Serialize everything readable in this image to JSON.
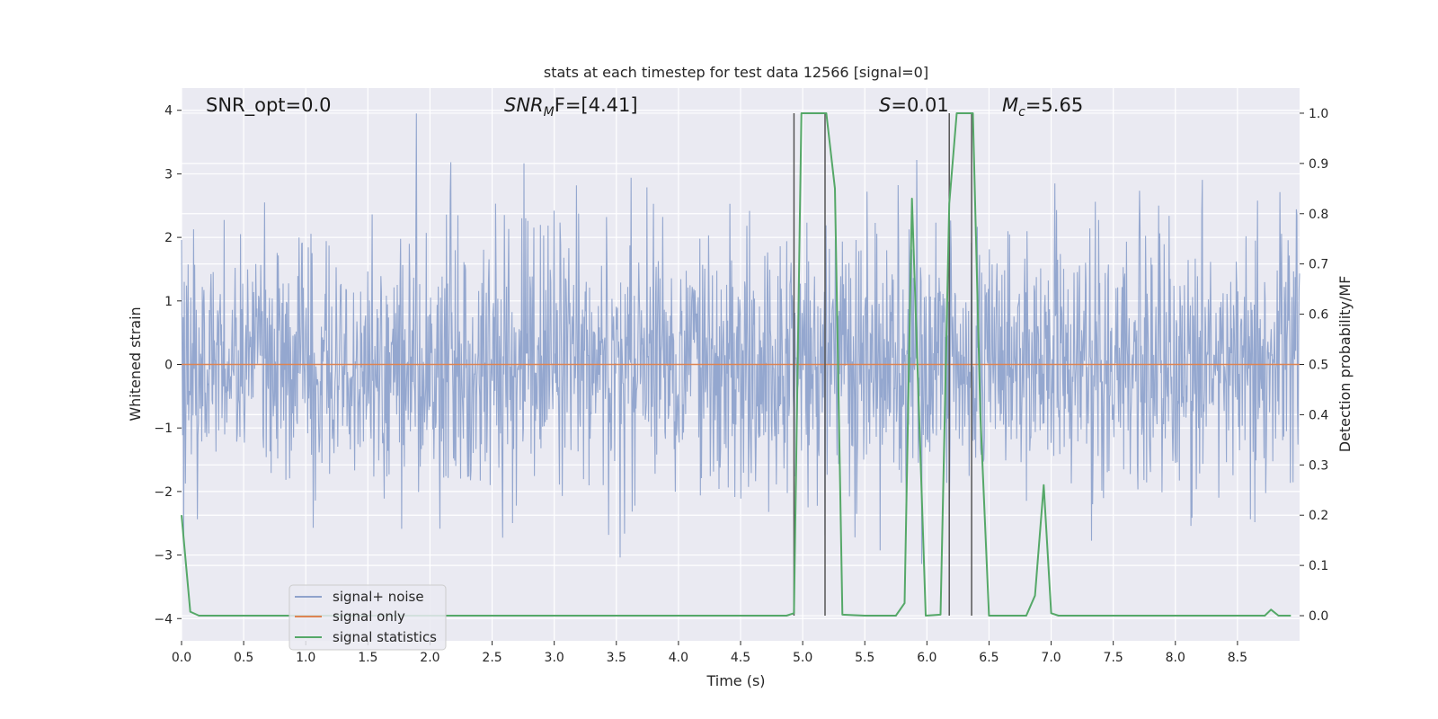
{
  "chart_data": {
    "type": "line",
    "title": "stats at each timestep for test data 12566 [signal=0]",
    "xlabel": "Time (s)",
    "ylabel": "Whitened strain",
    "y2label": "Detection probability/MF",
    "xlim": [
      0.0,
      9.0
    ],
    "ylim": [
      -4.35,
      4.35
    ],
    "y2lim": [
      -0.05,
      1.05
    ],
    "xticks": [
      0.0,
      0.5,
      1.0,
      1.5,
      2.0,
      2.5,
      3.0,
      3.5,
      4.0,
      4.5,
      5.0,
      5.5,
      6.0,
      6.5,
      7.0,
      7.5,
      8.0,
      8.5
    ],
    "xtick_labels": [
      "0.0",
      "0.5",
      "1.0",
      "1.5",
      "2.0",
      "2.5",
      "3.0",
      "3.5",
      "4.0",
      "4.5",
      "5.0",
      "5.5",
      "6.0",
      "6.5",
      "7.0",
      "7.5",
      "8.0",
      "8.5"
    ],
    "yticks": [
      4,
      3,
      2,
      1,
      0,
      -1,
      -2,
      -3,
      -4
    ],
    "ytick_labels": [
      "4",
      "3",
      "2",
      "1",
      "0",
      "−1",
      "−2",
      "−3",
      "−4"
    ],
    "y2ticks": [
      1.0,
      0.9,
      0.8,
      0.7,
      0.6,
      0.5,
      0.4,
      0.3,
      0.2,
      0.1,
      0.0
    ],
    "y2tick_labels": [
      "1.0",
      "0.9",
      "0.8",
      "0.7",
      "0.6",
      "0.5",
      "0.4",
      "0.3",
      "0.2",
      "0.1",
      "0.0"
    ],
    "grid": true,
    "legend_position": "lower-left",
    "annotations": {
      "snr_opt": "SNR_opt=0.0",
      "snr_mf_main": "SNR",
      "snr_mf_sub": "M",
      "snr_mf_rest": "F=[4.41]",
      "s_main": "S",
      "s_rest": "=0.01",
      "mc_main": "M",
      "mc_sub": "c",
      "mc_rest": "=5.65"
    },
    "series": [
      {
        "name": "signal+ noise",
        "color": "#8fa3cc",
        "style": "noise",
        "seed": 12566,
        "sigma": 1.0,
        "samples": 2048
      },
      {
        "name": "signal only",
        "color": "#dd8452",
        "x": [
          0.0,
          9.0
        ],
        "y": [
          0.0,
          0.0
        ]
      },
      {
        "name": "signal statistics",
        "color": "#55a868",
        "axis": "right",
        "x": [
          0.0,
          0.07,
          0.14,
          0.5,
          1.0,
          2.0,
          3.0,
          4.0,
          4.5,
          4.87,
          4.93,
          4.99,
          5.19,
          5.26,
          5.32,
          5.5,
          5.75,
          5.82,
          5.88,
          5.99,
          6.11,
          6.18,
          6.24,
          6.37,
          6.43,
          6.5,
          6.56,
          6.8,
          6.87,
          6.94,
          7.0,
          7.06,
          7.5,
          8.0,
          8.5,
          8.72,
          8.77,
          8.83,
          8.93
        ],
        "y": [
          0.2,
          0.008,
          0.0,
          0.0,
          0.0,
          0.0,
          0.0,
          0.0,
          0.0,
          0.0,
          0.005,
          1.0,
          1.0,
          0.85,
          0.002,
          0.0,
          0.0,
          0.025,
          0.83,
          0.0,
          0.002,
          0.82,
          1.0,
          1.0,
          0.4,
          0.0,
          0.0,
          0.0,
          0.04,
          0.26,
          0.005,
          0.0,
          0.0,
          0.0,
          0.0,
          0.0,
          0.012,
          0.0,
          0.0
        ]
      }
    ],
    "vlines": [
      4.93,
      5.18,
      6.18,
      6.36
    ],
    "vline_color": "#555555"
  }
}
